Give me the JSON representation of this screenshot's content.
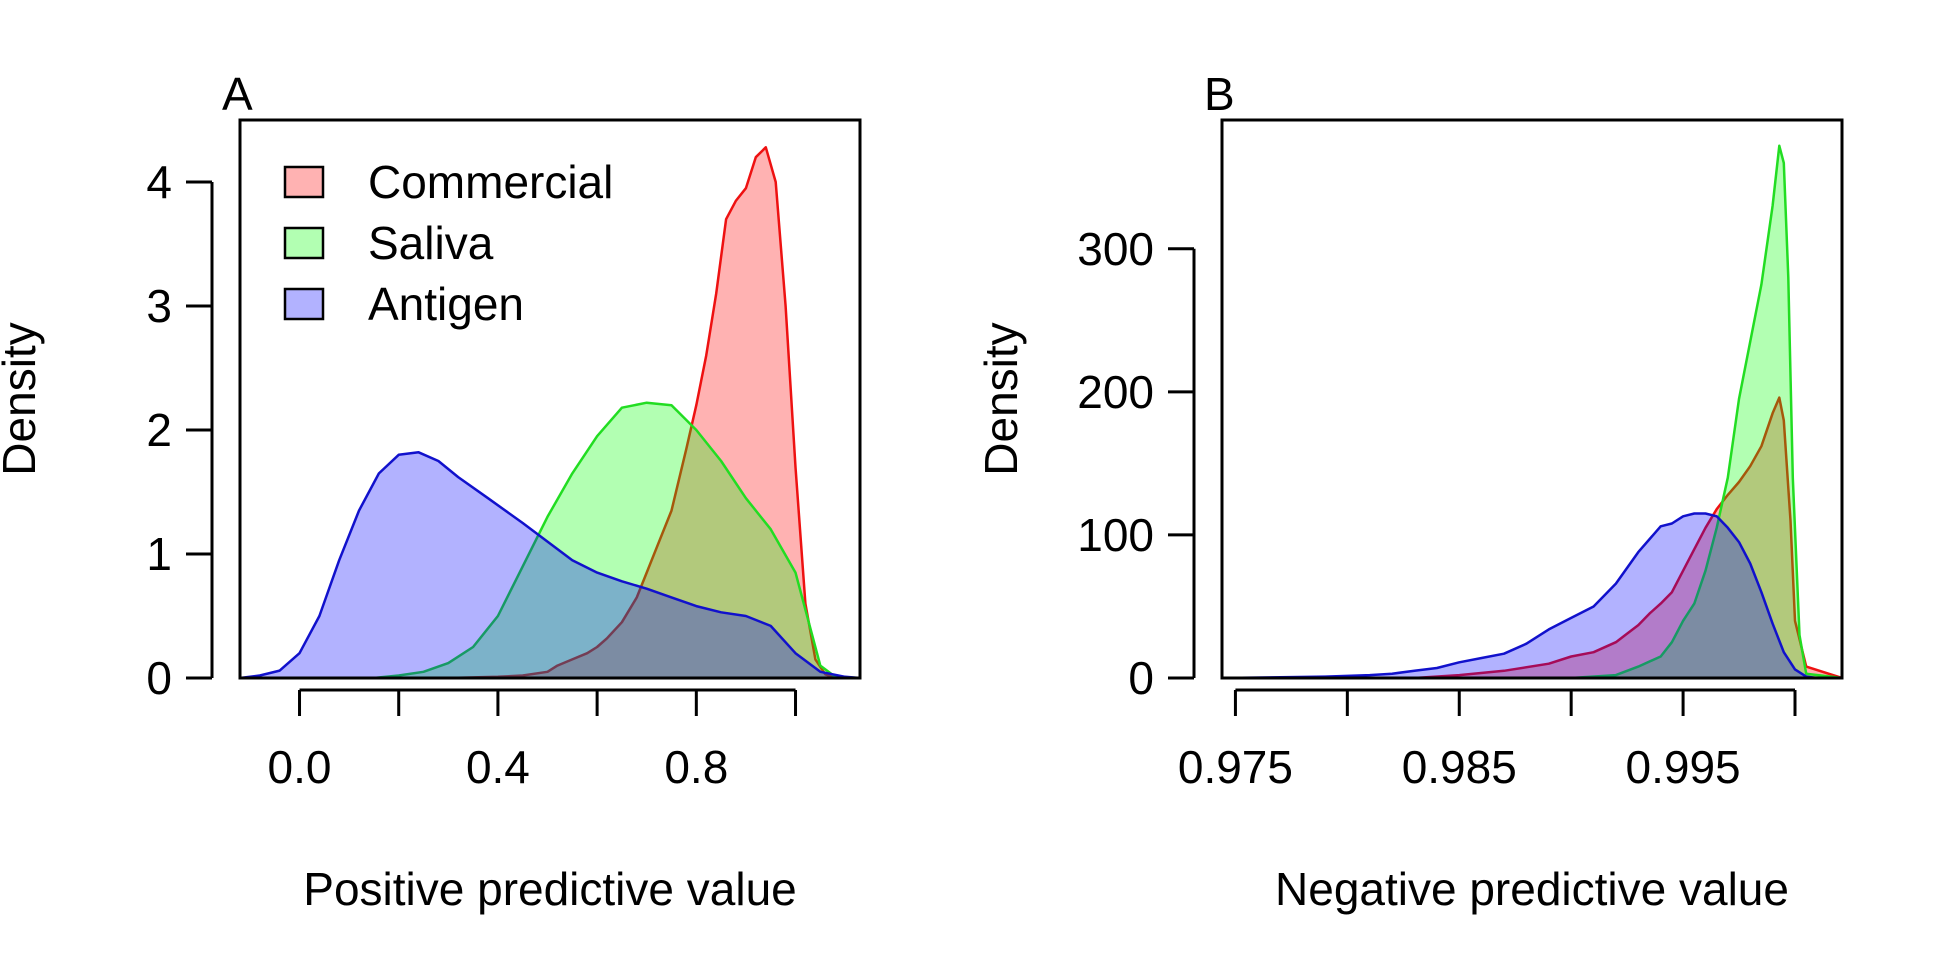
{
  "colors": {
    "Commercial": {
      "fill": "#ff0000",
      "stroke": "#ee1111"
    },
    "Saliva": {
      "fill": "#00ff00",
      "stroke": "#22dd22"
    },
    "Antigen": {
      "fill": "#0000ff",
      "stroke": "#1111cc"
    },
    "fill_opacity": 0.3,
    "axis": "#000000"
  },
  "legend": {
    "placement": "top-left",
    "entries": [
      "Commercial",
      "Saliva",
      "Antigen"
    ]
  },
  "chart_data": [
    {
      "type": "area",
      "panel_label": "A",
      "xlabel": "Positive predictive value",
      "ylabel": "Density",
      "xlim": [
        -0.12,
        1.13
      ],
      "ylim": [
        0,
        4.5
      ],
      "xticks": [
        0.0,
        0.2,
        0.4,
        0.6,
        0.8,
        1.0
      ],
      "xtick_labels": [
        "0.0",
        "",
        "0.4",
        "",
        "0.8",
        ""
      ],
      "yticks": [
        0,
        1,
        2,
        3,
        4
      ],
      "ytick_labels": [
        "0",
        "1",
        "2",
        "3",
        "4"
      ],
      "grid": false,
      "legend": true,
      "series": [
        {
          "name": "Commercial",
          "x": [
            -0.12,
            0.3,
            0.4,
            0.45,
            0.5,
            0.52,
            0.55,
            0.58,
            0.6,
            0.62,
            0.65,
            0.68,
            0.7,
            0.72,
            0.75,
            0.78,
            0.8,
            0.82,
            0.84,
            0.86,
            0.88,
            0.9,
            0.92,
            0.94,
            0.96,
            0.98,
            1.0,
            1.02,
            1.04,
            1.06,
            1.08,
            1.13
          ],
          "y": [
            0,
            0,
            0.01,
            0.02,
            0.05,
            0.1,
            0.15,
            0.2,
            0.25,
            0.32,
            0.45,
            0.65,
            0.85,
            1.05,
            1.35,
            1.85,
            2.2,
            2.6,
            3.1,
            3.7,
            3.85,
            3.95,
            4.2,
            4.28,
            4.0,
            3.0,
            1.7,
            0.6,
            0.15,
            0.03,
            0,
            0
          ]
        },
        {
          "name": "Saliva",
          "x": [
            -0.12,
            0.15,
            0.2,
            0.25,
            0.3,
            0.35,
            0.4,
            0.45,
            0.5,
            0.55,
            0.6,
            0.65,
            0.7,
            0.75,
            0.8,
            0.85,
            0.9,
            0.95,
            1.0,
            1.03,
            1.05,
            1.08,
            1.13
          ],
          "y": [
            0,
            0,
            0.02,
            0.05,
            0.12,
            0.25,
            0.5,
            0.9,
            1.3,
            1.65,
            1.95,
            2.18,
            2.22,
            2.2,
            2.0,
            1.75,
            1.45,
            1.2,
            0.85,
            0.4,
            0.1,
            0.01,
            0
          ]
        },
        {
          "name": "Antigen",
          "x": [
            -0.12,
            -0.08,
            -0.04,
            0.0,
            0.04,
            0.08,
            0.12,
            0.16,
            0.2,
            0.24,
            0.28,
            0.32,
            0.38,
            0.45,
            0.5,
            0.55,
            0.6,
            0.65,
            0.7,
            0.75,
            0.8,
            0.85,
            0.9,
            0.95,
            1.0,
            1.05,
            1.1,
            1.13
          ],
          "y": [
            0,
            0.02,
            0.06,
            0.2,
            0.5,
            0.95,
            1.35,
            1.65,
            1.8,
            1.82,
            1.75,
            1.62,
            1.45,
            1.25,
            1.1,
            0.95,
            0.85,
            0.78,
            0.72,
            0.65,
            0.58,
            0.53,
            0.5,
            0.42,
            0.2,
            0.05,
            0.01,
            0
          ]
        }
      ]
    },
    {
      "type": "area",
      "panel_label": "B",
      "xlabel": "Negative predictive value",
      "ylabel": "Density",
      "xlim": [
        0.9744,
        1.0021
      ],
      "ylim": [
        0,
        390
      ],
      "xticks": [
        0.975,
        0.98,
        0.985,
        0.99,
        0.995,
        1.0
      ],
      "xtick_labels": [
        "0.975",
        "",
        "0.985",
        "",
        "0.995",
        ""
      ],
      "yticks": [
        0,
        100,
        200,
        300
      ],
      "ytick_labels": [
        "0",
        "100",
        "200",
        "300"
      ],
      "grid": false,
      "legend": false,
      "series": [
        {
          "name": "Commercial",
          "x": [
            0.9744,
            0.983,
            0.985,
            0.987,
            0.989,
            0.99,
            0.991,
            0.992,
            0.993,
            0.9935,
            0.994,
            0.9945,
            0.995,
            0.9955,
            0.996,
            0.9965,
            0.997,
            0.9975,
            0.998,
            0.9985,
            0.999,
            0.9993,
            0.9995,
            0.9998,
            1.0,
            1.0005,
            1.0021
          ],
          "y": [
            0,
            0,
            2,
            5,
            10,
            15,
            18,
            25,
            37,
            45,
            52,
            60,
            75,
            90,
            105,
            118,
            128,
            137,
            148,
            162,
            185,
            196,
            180,
            110,
            40,
            8,
            0
          ]
        },
        {
          "name": "Saliva",
          "x": [
            0.9744,
            0.99,
            0.992,
            0.993,
            0.994,
            0.9945,
            0.995,
            0.9955,
            0.996,
            0.9965,
            0.997,
            0.9975,
            0.998,
            0.9985,
            0.999,
            0.9993,
            0.9995,
            0.9997,
            0.9999,
            1.0002,
            1.0005,
            1.0021
          ],
          "y": [
            0,
            0,
            2,
            8,
            15,
            25,
            40,
            52,
            75,
            105,
            140,
            195,
            235,
            275,
            330,
            372,
            360,
            280,
            140,
            30,
            3,
            0
          ]
        },
        {
          "name": "Antigen",
          "x": [
            0.9744,
            0.977,
            0.979,
            0.981,
            0.982,
            0.983,
            0.984,
            0.985,
            0.986,
            0.987,
            0.988,
            0.989,
            0.99,
            0.991,
            0.992,
            0.993,
            0.994,
            0.9945,
            0.995,
            0.9955,
            0.996,
            0.9965,
            0.997,
            0.9975,
            0.998,
            0.9985,
            0.999,
            0.9995,
            1.0,
            1.0005,
            1.001,
            1.0021
          ],
          "y": [
            0,
            0.5,
            1,
            2,
            3,
            5,
            7,
            11,
            14,
            17,
            24,
            34,
            42,
            50,
            66,
            88,
            106,
            108,
            113,
            115,
            115,
            113,
            105,
            95,
            80,
            60,
            38,
            18,
            6,
            1,
            0,
            0
          ]
        }
      ]
    }
  ]
}
